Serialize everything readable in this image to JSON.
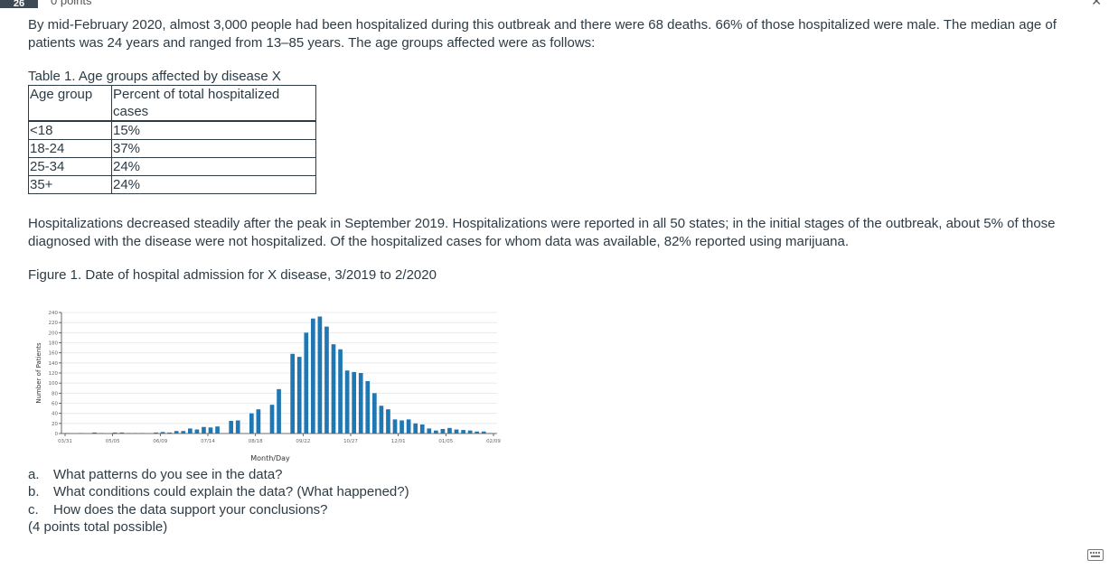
{
  "question": {
    "number": "26",
    "points": "0 points"
  },
  "paragraphs": {
    "intro": "By mid-February 2020, almost 3,000 people had been hospitalized during this outbreak and there were 68 deaths. 66% of those hospitalized were male. The median age of patients was 24 years and ranged from 13–85 years. The age groups affected were as follows:",
    "after_table": "Hospitalizations decreased steadily after the peak in September 2019. Hospitalizations were reported in all 50 states; in the initial stages of the outbreak, about 5% of those diagnosed with the disease were not hospitalized. Of the hospitalized cases for whom data was available, 82% reported using marijuana."
  },
  "table": {
    "caption": "Table 1. Age groups affected by disease X",
    "headers": [
      "Age group",
      "Percent of total hospitalized cases"
    ],
    "rows": [
      [
        "<18",
        "15%"
      ],
      [
        "18-24",
        "37%"
      ],
      [
        "25-34",
        "24%"
      ],
      [
        "35+",
        "24%"
      ]
    ]
  },
  "figure": {
    "caption": "Figure 1. Date of hospital admission for X disease, 3/2019 to 2/2020"
  },
  "chart_data": {
    "type": "bar",
    "title": "",
    "xlabel": "Month/Day",
    "ylabel": "Number of Patients",
    "ylim": [
      0,
      240
    ],
    "y_ticks": [
      0,
      20,
      40,
      60,
      80,
      100,
      120,
      140,
      160,
      180,
      200,
      220,
      240
    ],
    "x_tick_labels": [
      "03/31",
      "05/05",
      "06/09",
      "07/14",
      "08/18",
      "09/22",
      "10/27",
      "12/01",
      "01/05",
      "02/09"
    ],
    "grid": "horizontal",
    "color": "#1f77b4",
    "values": [
      1,
      0,
      1,
      0,
      2,
      1,
      0,
      2,
      2,
      1,
      1,
      1,
      0,
      2,
      3,
      2,
      5,
      5,
      10,
      8,
      13,
      12,
      14,
      0,
      25,
      26,
      0,
      40,
      48,
      0,
      57,
      88,
      0,
      158,
      152,
      200,
      228,
      232,
      212,
      177,
      167,
      125,
      122,
      120,
      104,
      80,
      55,
      48,
      28,
      26,
      28,
      20,
      18,
      10,
      6,
      9,
      11,
      8,
      7,
      6,
      4,
      4,
      1
    ]
  },
  "questions": {
    "items": [
      {
        "letter": "a.",
        "text": "What patterns do you see in the data?"
      },
      {
        "letter": "b.",
        "text": "What conditions could explain the data? (What happened?)"
      },
      {
        "letter": "c.",
        "text": "How does the data support your conclusions?"
      }
    ],
    "points_note": "(4 points total possible)"
  }
}
